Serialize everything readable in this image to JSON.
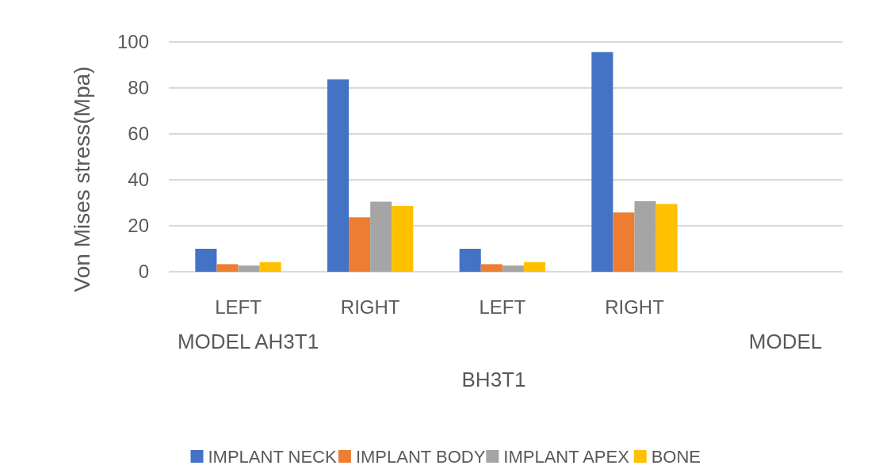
{
  "chart_data": {
    "type": "bar",
    "ylabel": "Von Mises stress(Mpa)",
    "categories": [
      "LEFT",
      "RIGHT",
      "LEFT",
      "RIGHT"
    ],
    "series": [
      {
        "name": "IMPLANT NECK",
        "color": "#4472c4",
        "values": [
          10,
          83.7,
          10,
          95.6
        ]
      },
      {
        "name": "IMPLANT BODY",
        "color": "#ed7d31",
        "values": [
          3.3,
          23.7,
          3.3,
          25.8
        ]
      },
      {
        "name": "IMPLANT APEX",
        "color": "#a5a5a5",
        "values": [
          2.7,
          30.5,
          2.7,
          30.7
        ]
      },
      {
        "name": "BONE",
        "color": "#ffc000",
        "values": [
          4.2,
          28.6,
          4.2,
          29.5
        ]
      }
    ],
    "ylim": [
      0,
      100
    ],
    "yticks": [
      0,
      20,
      40,
      60,
      80,
      100
    ],
    "grid": "y",
    "legend": "bottom",
    "annotations": [
      "MODEL AH3T1",
      "BH3T1",
      "MODEL"
    ]
  }
}
